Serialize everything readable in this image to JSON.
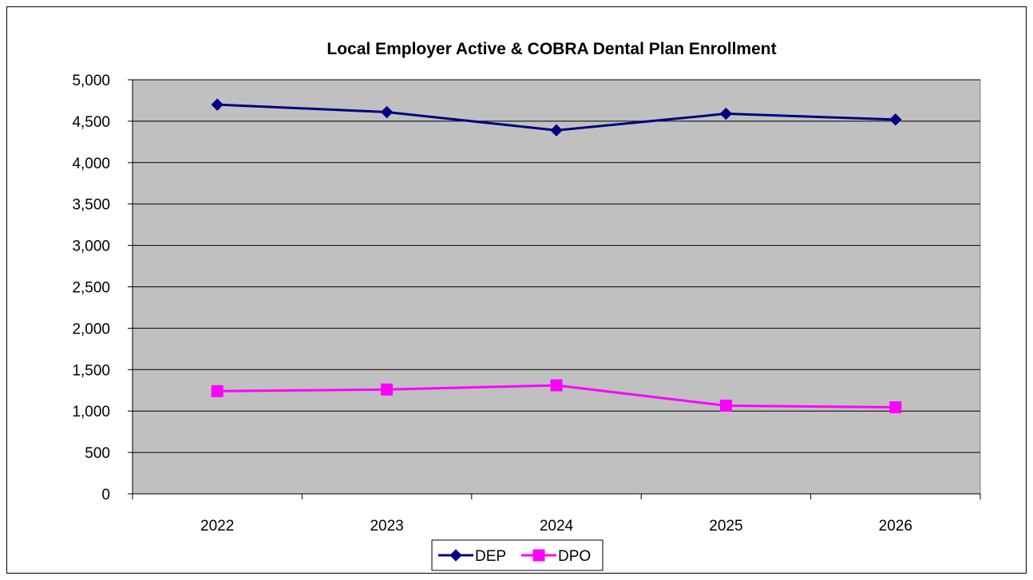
{
  "chart_data": {
    "type": "line",
    "title": "Local Employer  Active & COBRA Dental Plan Enrollment",
    "xlabel": "",
    "ylabel": "",
    "categories": [
      "2022",
      "2023",
      "2024",
      "2025",
      "2026"
    ],
    "ylim": [
      0,
      5000
    ],
    "yticks": [
      "0",
      "500",
      "1,000",
      "1,500",
      "2,000",
      "2,500",
      "3,000",
      "3,500",
      "4,000",
      "4,500",
      "5,000"
    ],
    "grid": true,
    "legend_position": "bottom",
    "series": [
      {
        "name": "DEP",
        "values": [
          4700,
          4610,
          4390,
          4590,
          4520
        ],
        "color": "#000080",
        "marker": "diamond"
      },
      {
        "name": "DPO",
        "values": [
          1240,
          1260,
          1310,
          1065,
          1045
        ],
        "color": "#ff00ff",
        "marker": "square"
      }
    ],
    "plot_background": "#c0c0c0"
  }
}
